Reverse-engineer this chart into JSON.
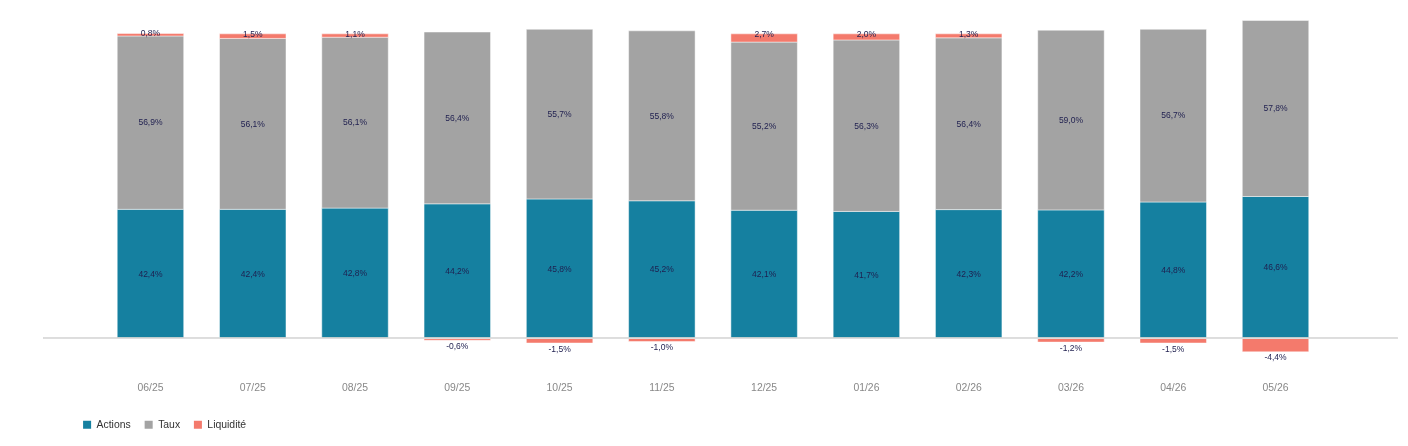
{
  "chart_data": {
    "type": "bar",
    "stacked": true,
    "legend": "bottom",
    "grid": false,
    "categories": [
      "06/25",
      "07/25",
      "08/25",
      "09/25",
      "10/25",
      "11/25",
      "12/25",
      "01/26",
      "02/26",
      "03/26",
      "04/26",
      "05/26"
    ],
    "series": [
      {
        "name": "Actions",
        "color": "#1580a0",
        "values": [
          42.4,
          42.4,
          42.8,
          44.2,
          45.8,
          45.2,
          42.1,
          41.7,
          42.3,
          42.2,
          44.8,
          46.6
        ],
        "value_labels": [
          "42,4%",
          "42,4%",
          "42,8%",
          "44,2%",
          "45,8%",
          "45,2%",
          "42,1%",
          "41,7%",
          "42,3%",
          "42,2%",
          "44,8%",
          "46,6%"
        ]
      },
      {
        "name": "Taux",
        "color": "#a3a3a3",
        "values": [
          56.9,
          56.1,
          56.1,
          56.4,
          55.7,
          55.8,
          55.2,
          56.3,
          56.4,
          59.0,
          56.7,
          57.8
        ],
        "value_labels": [
          "56,9%",
          "56,1%",
          "56,1%",
          "56,4%",
          "55,7%",
          "55,8%",
          "55,2%",
          "56,3%",
          "56,4%",
          "59,0%",
          "56,7%",
          "57,8%"
        ]
      },
      {
        "name": "Liquidité",
        "color": "#f47a6c",
        "values": [
          0.8,
          1.5,
          1.1,
          -0.6,
          -1.5,
          -1.0,
          2.7,
          2.0,
          1.3,
          -1.2,
          -1.5,
          -4.4
        ],
        "value_labels": [
          "0,8%",
          "1,5%",
          "1,1%",
          "-0,6%",
          "-1,5%",
          "-1,0%",
          "2,7%",
          "2,0%",
          "1,3%",
          "-1,2%",
          "-1,5%",
          "-4,4%"
        ]
      }
    ]
  }
}
